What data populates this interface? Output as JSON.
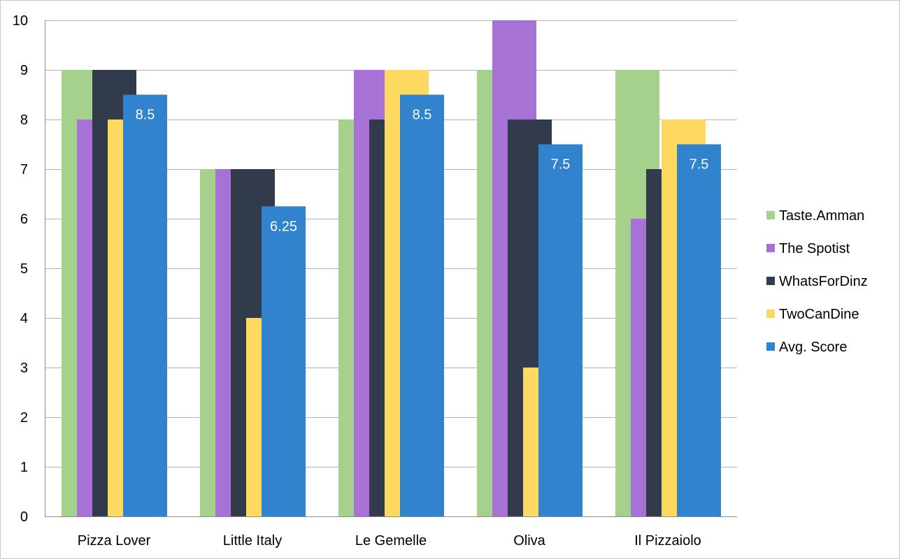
{
  "chart_data": {
    "type": "bar",
    "title": "",
    "xlabel": "",
    "ylabel": "",
    "ylim": [
      0,
      10
    ],
    "yticks": [
      0,
      1,
      2,
      3,
      4,
      5,
      6,
      7,
      8,
      9,
      10
    ],
    "grid": true,
    "legend_position": "right",
    "categories": [
      "Pizza Lover",
      "Little Italy",
      "Le Gemelle",
      "Oliva",
      "Il Pizzaiolo"
    ],
    "series": [
      {
        "name": "Taste.Amman",
        "color": "#a6d18c",
        "values": [
          9,
          7,
          8,
          9,
          9
        ]
      },
      {
        "name": "The Spotist",
        "color": "#a672d6",
        "values": [
          8,
          7,
          9,
          10,
          6
        ]
      },
      {
        "name": "WhatsForDinz",
        "color": "#323b4c",
        "values": [
          9,
          7,
          8,
          8,
          7
        ]
      },
      {
        "name": "TwoCanDine",
        "color": "#fed961",
        "values": [
          8,
          4,
          9,
          3,
          8
        ]
      },
      {
        "name": "Avg. Score",
        "color": "#3183cd",
        "values": [
          8.5,
          6.25,
          8.5,
          7.5,
          7.5
        ],
        "data_labels": [
          "8.5",
          "6.25",
          "8.5",
          "7.5",
          "7.5"
        ]
      }
    ]
  }
}
